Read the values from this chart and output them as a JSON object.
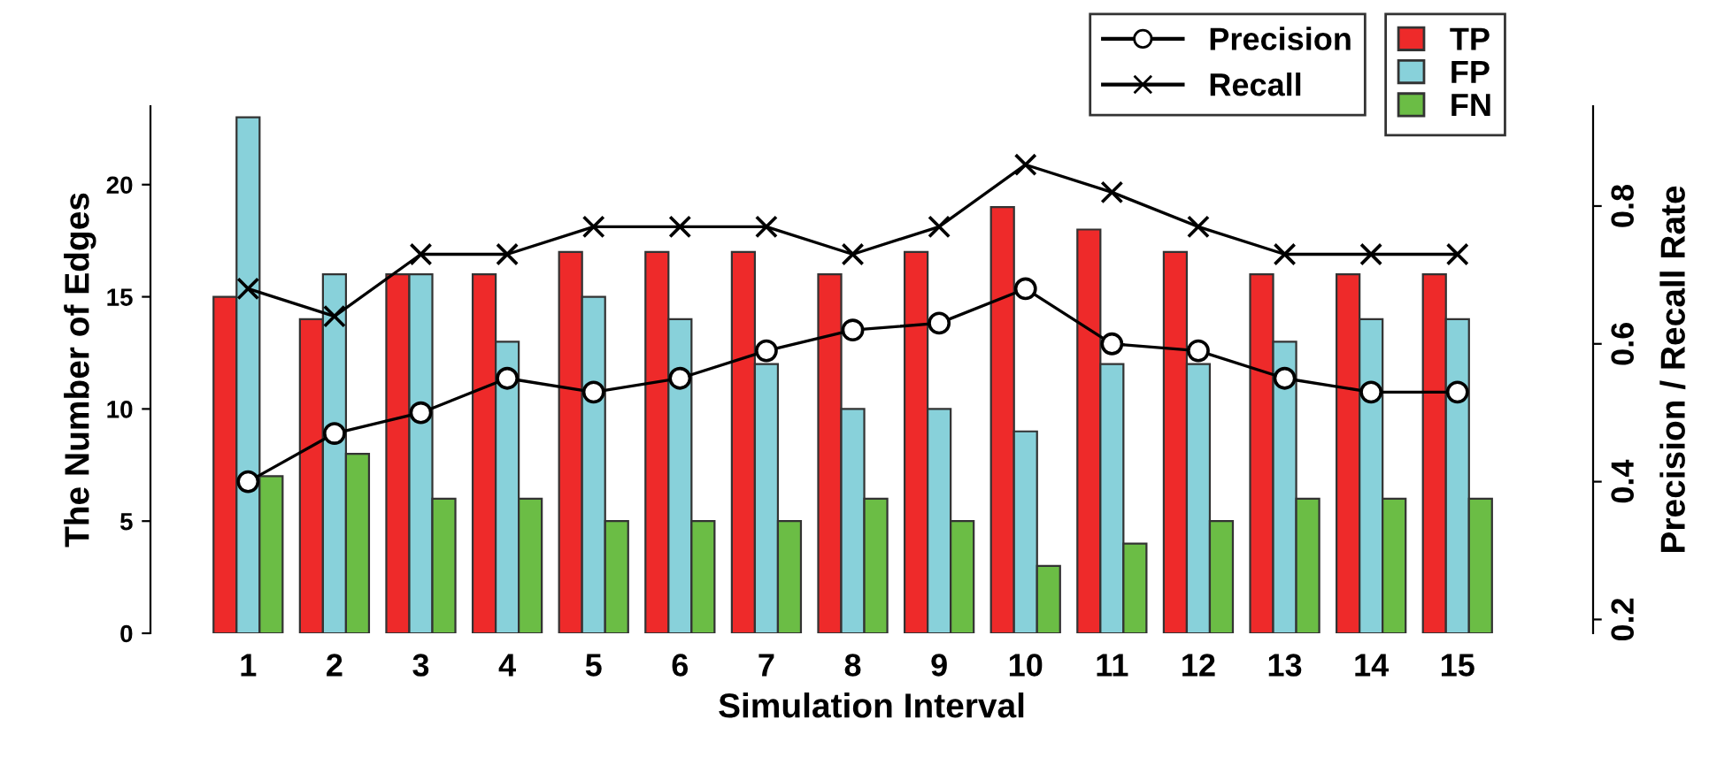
{
  "chart_data": {
    "type": "bar",
    "xlabel": "Simulation Interval",
    "ylabel": "The Number of Edges",
    "y2label": "Precision / Recall Rate",
    "categories": [
      "1",
      "2",
      "3",
      "4",
      "5",
      "6",
      "7",
      "8",
      "9",
      "10",
      "11",
      "12",
      "13",
      "14",
      "15"
    ],
    "series": [
      {
        "name": "TP",
        "color": "#ee2a2a",
        "values": [
          15,
          14,
          16,
          16,
          17,
          17,
          17,
          16,
          17,
          19,
          18,
          17,
          16,
          16,
          16
        ]
      },
      {
        "name": "FP",
        "color": "#88d1da",
        "values": [
          23,
          16,
          16,
          13,
          15,
          14,
          12,
          10,
          10,
          9,
          12,
          12,
          13,
          14,
          14
        ]
      },
      {
        "name": "FN",
        "color": "#6bbd45",
        "values": [
          7,
          8,
          6,
          6,
          5,
          5,
          5,
          6,
          5,
          3,
          4,
          5,
          6,
          6,
          6
        ]
      },
      {
        "name": "Precision",
        "type": "line",
        "axis": "y2",
        "color": "#000000",
        "marker": "circle",
        "values": [
          0.4,
          0.47,
          0.5,
          0.55,
          0.53,
          0.55,
          0.59,
          0.62,
          0.63,
          0.68,
          0.6,
          0.59,
          0.55,
          0.53,
          0.53
        ]
      },
      {
        "name": "Recall",
        "type": "line",
        "axis": "y2",
        "color": "#000000",
        "marker": "cross",
        "values": [
          0.68,
          0.64,
          0.73,
          0.73,
          0.77,
          0.77,
          0.77,
          0.73,
          0.77,
          0.86,
          0.82,
          0.77,
          0.73,
          0.73,
          0.73
        ]
      }
    ],
    "ylim": [
      0,
      23.5
    ],
    "yticks": [
      0,
      5,
      10,
      15,
      20
    ],
    "y2lim": [
      0.18,
      0.945
    ],
    "y2ticks": [
      0.2,
      0.4,
      0.6,
      0.8
    ],
    "grid": false,
    "legend": "top right"
  }
}
